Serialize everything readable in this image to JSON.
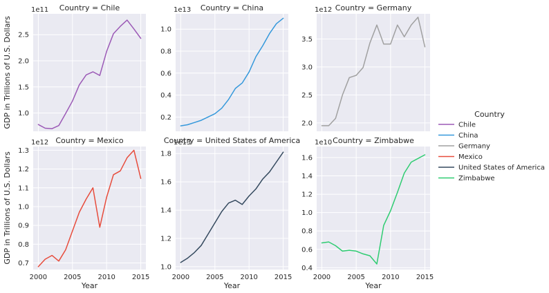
{
  "chart_data": {
    "type": "line",
    "facet_label": "Country",
    "xlabel": "Year",
    "ylabel": "GDP in Trillions of U.S. Dollars",
    "legend": {
      "title": "Country",
      "position": "right"
    },
    "grid": true,
    "x_ticks": [
      2000,
      2005,
      2010,
      2015
    ],
    "panels": [
      {
        "country": "Chile",
        "title": "Country = Chile",
        "color": "#9b59b6",
        "offset_text": "1e11",
        "ylim": [
          0.65,
          2.9
        ],
        "y_ticks": [
          "1.0",
          "1.5",
          "2.0",
          "2.5"
        ],
        "y_tick_values": [
          1.0,
          1.5,
          2.0,
          2.5
        ],
        "x": [
          2000,
          2001,
          2002,
          2003,
          2004,
          2005,
          2006,
          2007,
          2008,
          2009,
          2010,
          2011,
          2012,
          2013,
          2014,
          2015
        ],
        "values": [
          0.78,
          0.71,
          0.7,
          0.76,
          0.99,
          1.23,
          1.54,
          1.73,
          1.79,
          1.72,
          2.18,
          2.52,
          2.66,
          2.78,
          2.61,
          2.43
        ]
      },
      {
        "country": "China",
        "title": "Country = China",
        "color": "#3498db",
        "offset_text": "1e13",
        "ylim": [
          0.07,
          1.14
        ],
        "y_ticks": [
          "0.2",
          "0.4",
          "0.6",
          "0.8",
          "1.0"
        ],
        "y_tick_values": [
          0.2,
          0.4,
          0.6,
          0.8,
          1.0
        ],
        "x": [
          2000,
          2001,
          2002,
          2003,
          2004,
          2005,
          2006,
          2007,
          2008,
          2009,
          2010,
          2011,
          2012,
          2013,
          2014,
          2015
        ],
        "values": [
          0.12,
          0.13,
          0.15,
          0.17,
          0.2,
          0.23,
          0.28,
          0.36,
          0.46,
          0.51,
          0.61,
          0.75,
          0.85,
          0.96,
          1.05,
          1.1
        ]
      },
      {
        "country": "Germany",
        "title": "Country = Germany",
        "color": "#a0a0a0",
        "offset_text": "1e12",
        "ylim": [
          1.85,
          3.95
        ],
        "y_ticks": [
          "2.0",
          "2.5",
          "3.0",
          "3.5"
        ],
        "y_tick_values": [
          2.0,
          2.5,
          3.0,
          3.5
        ],
        "x": [
          2000,
          2001,
          2002,
          2003,
          2004,
          2005,
          2006,
          2007,
          2008,
          2009,
          2010,
          2011,
          2012,
          2013,
          2014,
          2015
        ],
        "values": [
          1.95,
          1.95,
          2.08,
          2.5,
          2.81,
          2.85,
          2.99,
          3.43,
          3.75,
          3.41,
          3.41,
          3.75,
          3.54,
          3.75,
          3.89,
          3.36
        ]
      },
      {
        "country": "Mexico",
        "title": "Country = Mexico",
        "color": "#e74c3c",
        "offset_text": "1e12",
        "ylim": [
          0.665,
          1.32
        ],
        "y_ticks": [
          "0.7",
          "0.8",
          "0.9",
          "1.0",
          "1.1",
          "1.2",
          "1.3"
        ],
        "y_tick_values": [
          0.7,
          0.8,
          0.9,
          1.0,
          1.1,
          1.2,
          1.3
        ],
        "x": [
          2000,
          2001,
          2002,
          2003,
          2004,
          2005,
          2006,
          2007,
          2008,
          2009,
          2010,
          2011,
          2012,
          2013,
          2014,
          2015
        ],
        "values": [
          0.68,
          0.72,
          0.74,
          0.71,
          0.77,
          0.87,
          0.97,
          1.04,
          1.1,
          0.89,
          1.05,
          1.17,
          1.19,
          1.26,
          1.3,
          1.15
        ]
      },
      {
        "country": "United States of America",
        "title": "Country = United States of America",
        "color": "#34495e",
        "offset_text": "1e13",
        "ylim": [
          0.98,
          1.85
        ],
        "y_ticks": [
          "1.0",
          "1.2",
          "1.4",
          "1.6",
          "1.8"
        ],
        "y_tick_values": [
          1.0,
          1.2,
          1.4,
          1.6,
          1.8
        ],
        "x": [
          2000,
          2001,
          2002,
          2003,
          2004,
          2005,
          2006,
          2007,
          2008,
          2009,
          2010,
          2011,
          2012,
          2013,
          2014,
          2015
        ],
        "values": [
          1.03,
          1.06,
          1.1,
          1.15,
          1.23,
          1.31,
          1.39,
          1.45,
          1.47,
          1.44,
          1.5,
          1.55,
          1.62,
          1.67,
          1.74,
          1.81
        ]
      },
      {
        "country": "Zimbabwe",
        "title": "Country = Zimbabwe",
        "color": "#2ecc71",
        "offset_text": "1e10",
        "ylim": [
          0.38,
          1.72
        ],
        "y_ticks": [
          "0.4",
          "0.6",
          "0.8",
          "1.0",
          "1.2",
          "1.4",
          "1.6"
        ],
        "y_tick_values": [
          0.4,
          0.6,
          0.8,
          1.0,
          1.2,
          1.4,
          1.6
        ],
        "x": [
          2000,
          2001,
          2002,
          2003,
          2004,
          2005,
          2006,
          2007,
          2008,
          2009,
          2010,
          2011,
          2012,
          2013,
          2014,
          2015
        ],
        "values": [
          0.67,
          0.68,
          0.64,
          0.58,
          0.59,
          0.58,
          0.55,
          0.53,
          0.44,
          0.86,
          1.02,
          1.22,
          1.43,
          1.55,
          1.59,
          1.63
        ]
      }
    ]
  }
}
